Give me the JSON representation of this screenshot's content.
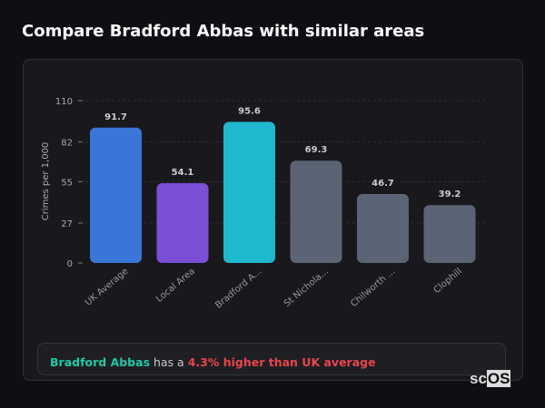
{
  "title": "Compare Bradford Abbas with similar areas",
  "chart_data": {
    "type": "bar",
    "title": "",
    "xlabel": "",
    "ylabel": "Crimes per 1,000",
    "ylim": [
      0,
      110
    ],
    "yticks": [
      0,
      27,
      55,
      82,
      110
    ],
    "grid": true,
    "categories": [
      "UK Average",
      "Local Area",
      "Bradford A...",
      "St Nichola...",
      "Chilworth ...",
      "Clophill"
    ],
    "values": [
      91.7,
      54.1,
      95.6,
      69.3,
      46.7,
      39.2
    ],
    "colors": [
      "#3a75d8",
      "#7b4fd6",
      "#20b8cf",
      "#5b6475",
      "#5b6475",
      "#5b6475"
    ]
  },
  "summary": {
    "place": "Bradford Abbas",
    "middle": " has a ",
    "difference": "4.3% higher than UK average"
  },
  "logo": {
    "prefix": "sc",
    "suffix": "OS"
  }
}
